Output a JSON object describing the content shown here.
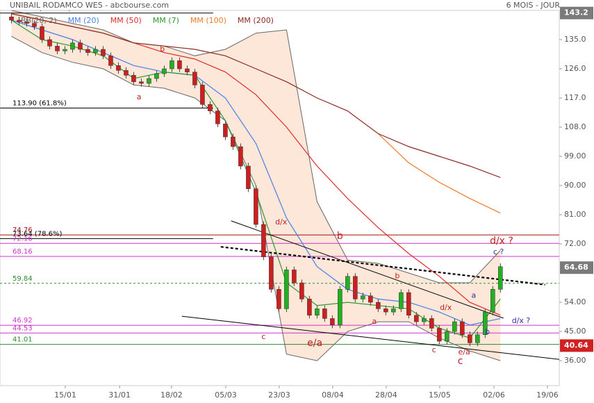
{
  "chart_data": {
    "type": "candlestick",
    "title": "UNIBAIL RODAMCO WES - abcbourse.com",
    "period": "6 MOIS - JOUR",
    "xlim": [
      0,
      146.4
    ],
    "ylim": [
      28.3,
      144.0
    ],
    "xticks": [
      {
        "value": 17.1,
        "label": "15/01"
      },
      {
        "value": 31.3,
        "label": "31/01"
      },
      {
        "value": 44.9,
        "label": "18/02"
      },
      {
        "value": 59.1,
        "label": "05/03"
      },
      {
        "value": 73.1,
        "label": "23/03"
      },
      {
        "value": 87.1,
        "label": "08/04"
      },
      {
        "value": 101.1,
        "label": "28/04"
      },
      {
        "value": 115.1,
        "label": "15/05"
      },
      {
        "value": 129.3,
        "label": "02/06"
      },
      {
        "value": 143.3,
        "label": "19/06"
      }
    ],
    "yticks": [
      {
        "value": 135,
        "label": "135.0"
      },
      {
        "value": 126,
        "label": "126.0"
      },
      {
        "value": 117,
        "label": "117.0"
      },
      {
        "value": 108,
        "label": "108.0"
      },
      {
        "value": 99,
        "label": "99.00"
      },
      {
        "value": 90,
        "label": "90.00"
      },
      {
        "value": 81,
        "label": "81.00"
      },
      {
        "value": 72,
        "label": "72.00"
      },
      {
        "value": 54,
        "label": "54.00"
      },
      {
        "value": 45,
        "label": "45.00"
      },
      {
        "value": 36,
        "label": "36.00"
      }
    ],
    "up_color": "#22b022",
    "down_color": "#cc1f1f",
    "x": [
      3,
      5,
      7,
      9,
      11,
      13,
      15,
      17,
      19,
      21,
      23,
      25,
      27,
      29,
      31,
      33,
      35,
      37,
      39,
      41,
      43,
      45,
      47,
      49,
      51,
      53,
      55,
      57,
      59,
      61,
      63,
      65,
      67,
      69,
      71,
      73,
      75,
      77,
      79,
      81,
      83,
      85,
      87,
      89,
      91,
      93,
      95,
      97,
      99,
      101,
      103,
      105,
      107,
      109,
      111,
      113,
      115,
      117,
      119,
      121,
      123,
      125,
      127,
      129,
      131
    ],
    "open": [
      142,
      141,
      140.5,
      140,
      139,
      135,
      133,
      131.5,
      132,
      134,
      132,
      131,
      132,
      130,
      127,
      125.5,
      124,
      122,
      121.5,
      123,
      124.5,
      126,
      128.5,
      126,
      125,
      121,
      115,
      113,
      109,
      105,
      102,
      96,
      89,
      78,
      68,
      58,
      52,
      64,
      60,
      55,
      50,
      52,
      49,
      47,
      58,
      62,
      55,
      56,
      54,
      52,
      51,
      52,
      57,
      50,
      48,
      49,
      46,
      42,
      45,
      48,
      44,
      41.5,
      44,
      51,
      58
    ],
    "high": [
      143,
      142,
      141.5,
      141,
      140,
      136,
      134,
      133,
      135,
      135,
      133,
      133,
      133,
      131,
      128,
      126.5,
      125,
      123,
      124,
      125.5,
      127,
      129.5,
      129.5,
      127,
      126,
      122,
      116,
      114,
      110,
      106,
      103,
      97,
      90,
      79,
      69,
      59,
      65,
      65,
      61,
      56,
      53,
      53,
      50,
      59,
      63,
      63,
      57,
      57,
      55,
      53,
      53,
      58,
      58,
      51,
      50,
      50,
      47,
      46,
      49,
      49,
      45,
      45,
      52,
      59,
      66
    ],
    "low": [
      140,
      139.5,
      139,
      138,
      134,
      132,
      130.5,
      130.5,
      131,
      131,
      130,
      130,
      129,
      126,
      124.5,
      123,
      121,
      120.5,
      120.5,
      122,
      123.5,
      125,
      125,
      124,
      120,
      114,
      112,
      108,
      104,
      101,
      95,
      88,
      77,
      67,
      57,
      51,
      51,
      59,
      54,
      49,
      49,
      48,
      46,
      46,
      57,
      54,
      54,
      53,
      51,
      50,
      50,
      51,
      49,
      47,
      47,
      45,
      41,
      41,
      44,
      43,
      40.5,
      40.5,
      43,
      50,
      57
    ],
    "close": [
      141,
      140.5,
      140,
      139,
      135,
      133,
      131.5,
      132,
      134,
      132,
      131,
      132,
      130,
      127,
      125.5,
      124,
      122,
      121.5,
      123,
      124.5,
      126,
      128.5,
      126,
      125,
      121,
      115,
      113,
      109,
      105,
      102,
      96,
      89,
      78,
      68,
      58,
      52,
      64,
      60,
      55,
      50,
      52,
      49,
      47,
      58,
      62,
      55,
      56,
      54,
      52,
      51,
      52,
      57,
      50,
      48,
      49,
      46,
      42,
      45,
      48,
      44,
      41.5,
      44,
      51,
      58,
      65
    ],
    "line_x": [
      3,
      11,
      19,
      27,
      35,
      43,
      51,
      59,
      67,
      75,
      83,
      91,
      99,
      107,
      115,
      123,
      131
    ],
    "bands": {
      "name": "BB(20, 2)",
      "color": "#666666",
      "fill": "#fbe3d2",
      "upper": [
        144,
        142,
        140,
        138,
        134,
        133,
        130,
        132,
        137,
        138,
        85,
        67,
        66,
        63,
        60,
        60,
        70
      ],
      "lower": [
        136,
        131,
        128,
        126,
        121,
        120,
        117,
        110,
        90,
        38,
        36,
        45,
        48,
        48,
        43,
        39,
        36
      ]
    },
    "lines": [
      {
        "name": "MM (20)",
        "color": "#4a7fe8",
        "values": [
          141,
          138,
          135,
          131,
          127,
          125,
          124,
          117,
          103,
          80,
          65,
          58,
          55,
          54,
          51,
          47,
          49
        ]
      },
      {
        "name": "MM (50)",
        "color": "#e02a2a",
        "values": [
          143,
          141,
          139,
          137,
          134,
          131,
          129,
          125,
          118,
          108,
          96,
          86,
          77,
          69,
          62,
          54,
          50
        ]
      },
      {
        "name": "MM (7)",
        "color": "#2e9a2e",
        "values": [
          141,
          135,
          133,
          130,
          123,
          125,
          124,
          110,
          88,
          60,
          53,
          54,
          53,
          52,
          46,
          43,
          55
        ]
      },
      {
        "name": "MM (100)",
        "color": "#f07a2a",
        "values": [
          null,
          null,
          null,
          null,
          null,
          null,
          null,
          null,
          null,
          null,
          null,
          null,
          106,
          97,
          91,
          86,
          81.5
        ]
      },
      {
        "name": "MM (200)",
        "color": "#8b2a22",
        "values": [
          143,
          141,
          139,
          137,
          134,
          133,
          132,
          130,
          126,
          122,
          117,
          113,
          106,
          102,
          99,
          96,
          92.5
        ]
      }
    ],
    "levels": [
      {
        "value": 143.19,
        "label": "143.19 (100.0%)",
        "color": "#000000",
        "end": 55.8
      },
      {
        "value": 113.9,
        "label": "113.90 (61.8%)",
        "color": "#000000",
        "end": 55.8
      },
      {
        "value": 74.76,
        "color": "#a01010"
      },
      {
        "value": 73.64,
        "label": "73.64 (78.6%)",
        "color": "#000000",
        "end": 55.8
      },
      {
        "value": 72.16,
        "color": "#cc33cc"
      },
      {
        "value": 68.16,
        "color": "#cc33cc"
      },
      {
        "value": 59.84,
        "color": "#2e8b2e",
        "style": "dashed"
      },
      {
        "value": 46.92,
        "color": "#cc33cc"
      },
      {
        "value": 44.53,
        "color": "#cc33cc"
      },
      {
        "value": 41.01,
        "color": "#2e8b2e"
      }
    ],
    "trendlines": [
      {
        "x": [
          60.5,
          131.8
        ],
        "y": [
          79.1,
          49.1
        ],
        "color": "#000000"
      },
      {
        "x": [
          47.6,
          146.4
        ],
        "y": [
          49.7,
          36.4
        ],
        "color": "#000000"
      },
      {
        "x": [
          57.8,
          142.7
        ],
        "y": [
          71.1,
          59.4
        ],
        "color": "#000000",
        "style": "dotted"
      }
    ],
    "annotations": [
      {
        "text": "a",
        "x": 36.4,
        "y": 117.2,
        "color": "#c02020",
        "size": 11
      },
      {
        "text": "b",
        "x": 42.5,
        "y": 132,
        "color": "#c02020",
        "size": 11
      },
      {
        "text": "d/x",
        "x": 73.6,
        "y": 78.6,
        "color": "#c02020",
        "size": 11
      },
      {
        "text": "b",
        "x": 89,
        "y": 74.4,
        "color": "#c02020",
        "size": 14
      },
      {
        "text": "c",
        "x": 69,
        "y": 43.3,
        "color": "#c02020",
        "size": 11
      },
      {
        "text": "e/a",
        "x": 82.4,
        "y": 41.4,
        "color": "#c02020",
        "size": 14
      },
      {
        "text": "a",
        "x": 98,
        "y": 48,
        "color": "#c02020",
        "size": 11
      },
      {
        "text": "b",
        "x": 104,
        "y": 62,
        "color": "#c02020",
        "size": 11
      },
      {
        "text": "c",
        "x": 113.6,
        "y": 39.2,
        "color": "#c02020",
        "size": 11
      },
      {
        "text": "d/x",
        "x": 116.7,
        "y": 52.3,
        "color": "#c02020",
        "size": 11
      },
      {
        "text": "e/a",
        "x": 121.5,
        "y": 38.6,
        "color": "#c02020",
        "size": 11
      },
      {
        "text": "c",
        "x": 120.5,
        "y": 35.8,
        "color": "#c02020",
        "size": 14
      },
      {
        "text": "a",
        "x": 124,
        "y": 56,
        "color": "#3030a0",
        "size": 11
      },
      {
        "text": "b",
        "x": 127.6,
        "y": 44.8,
        "color": "#3030a0",
        "size": 11
      },
      {
        "text": "c ?",
        "x": 130.5,
        "y": 69.4,
        "color": "#3030a0",
        "size": 11
      },
      {
        "text": "d/x ?",
        "x": 131.3,
        "y": 72.9,
        "color": "#c02020",
        "size": 14
      },
      {
        "text": "d/x ?",
        "x": 136.4,
        "y": 48.2,
        "color": "#3030a0",
        "size": 11
      }
    ],
    "price_markers": [
      {
        "value": 143.2,
        "color": "#7a7a7a"
      },
      {
        "value": 64.68,
        "color": "#7a7a7a"
      },
      {
        "value": 40.64,
        "color": "#d02020"
      }
    ]
  }
}
